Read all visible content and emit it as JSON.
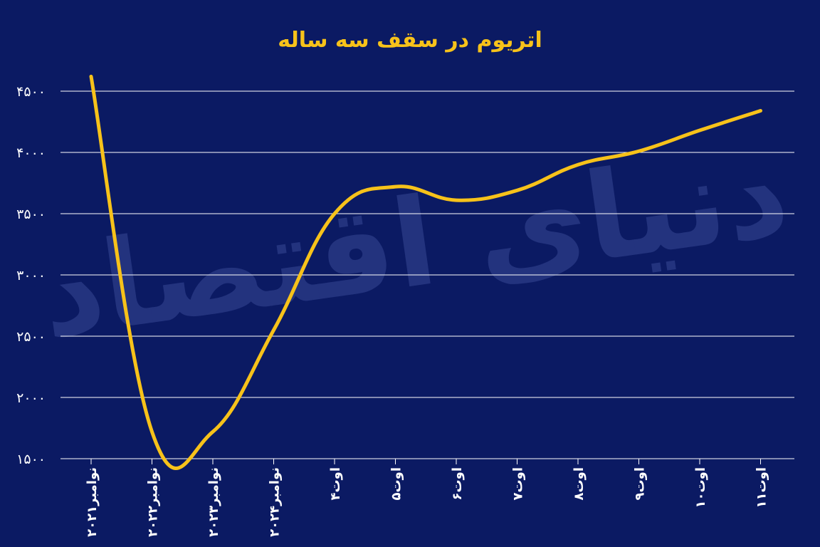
{
  "chart_data": {
    "type": "line",
    "title": "اتریوم در سقف سه ساله",
    "xlabel": "",
    "ylabel": "",
    "watermark": "دنیای اقتصاد",
    "categories": [
      "نوامبر۲۰۲۱",
      "نوامبر۲۰۲۲",
      "نوامبر۲۰۲۳",
      "نوامبر۲۰۲۴",
      "۴اوت",
      "۵اوت",
      "۶اوت",
      "۷اوت",
      "۸اوت",
      "۹اوت",
      "۱۰اوت",
      "۱۱اوت"
    ],
    "series": [
      {
        "values": [
          4620,
          1720,
          1720,
          2550,
          3500,
          3720,
          3610,
          3690,
          3900,
          4010,
          4180,
          4340
        ]
      }
    ],
    "y_ticks": [
      1500,
      2000,
      2500,
      3000,
      3500,
      4000,
      4500
    ],
    "y_tick_labels": [
      "۱۵۰۰",
      "۲۰۰۰",
      "۲۵۰۰",
      "۳۰۰۰",
      "۳۵۰۰",
      "۴۰۰۰",
      "۴۵۰۰"
    ],
    "ylim": [
      1500,
      4700
    ],
    "grid": true,
    "colors": {
      "background": "#0b1a63",
      "line": "#f7c21a",
      "title": "#f7c21a",
      "grid": "#ffffff",
      "text": "#ffffff",
      "watermark": "#2a3a85"
    }
  }
}
